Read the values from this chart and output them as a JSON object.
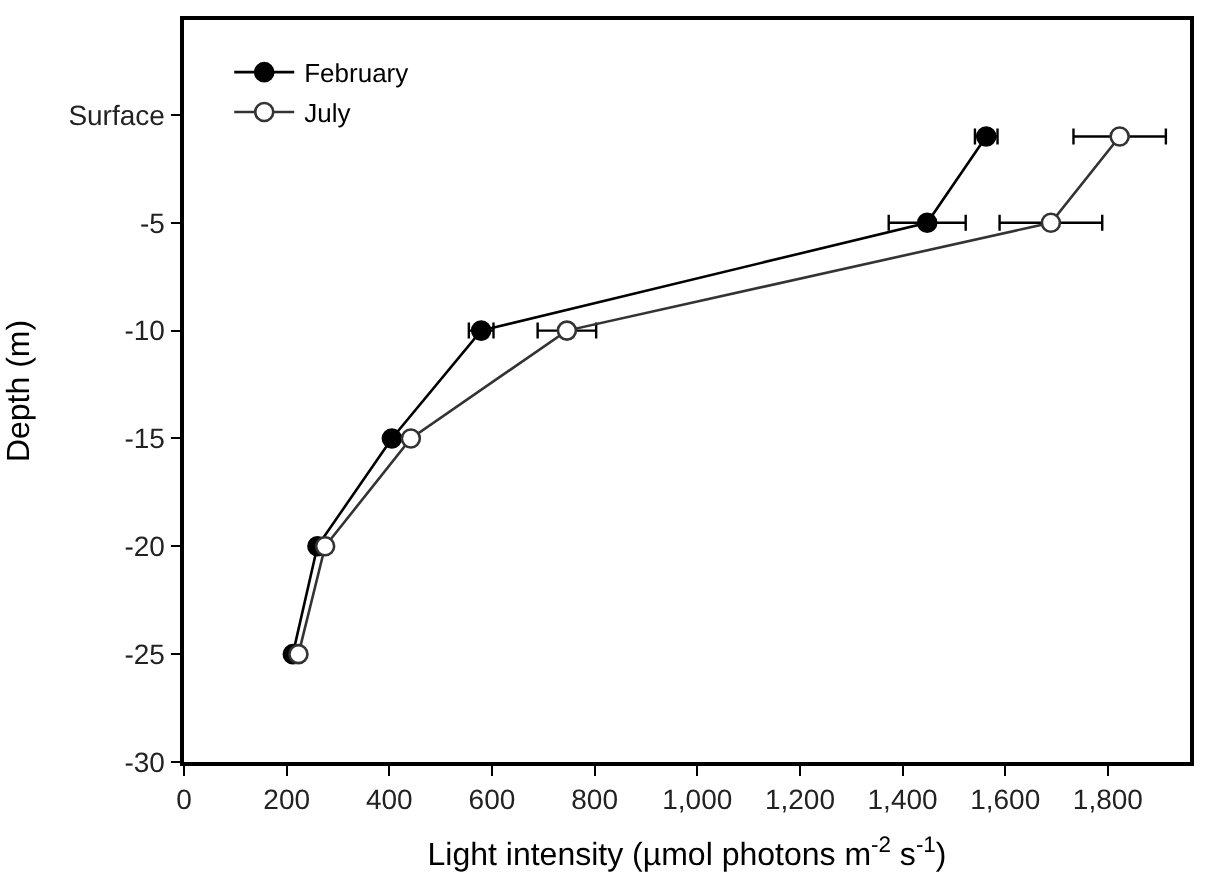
{
  "chart_data": {
    "type": "line",
    "xlabel": "Light intensity (µmol photons m$^{-2}$ s$^{-1}$)",
    "ylabel": "Depth (m)",
    "xlim": [
      0,
      1960
    ],
    "xticks": [
      0,
      {
        "value": 200,
        "label": "200"
      },
      {
        "value": 400,
        "label": "400"
      },
      {
        "value": 600,
        "label": "600"
      },
      {
        "value": 800,
        "label": "800"
      },
      {
        "value": 1000,
        "label": "1,000"
      },
      {
        "value": 1200,
        "label": "1,200"
      },
      {
        "value": 1400,
        "label": "1,400"
      },
      {
        "value": 1600,
        "label": "1,600"
      },
      {
        "value": 1800,
        "label": "1,800"
      }
    ],
    "ylim": [
      -30,
      4.4
    ],
    "yticks": [
      {
        "value": 0,
        "label": "Surface"
      },
      -5,
      -10,
      -15,
      -20,
      -25,
      -30
    ],
    "legend": "top left",
    "marker": "circle",
    "line_style": "solid",
    "series": [
      {
        "name": "February",
        "color": "#000000",
        "x": [
          1563,
          1448,
          579,
          405,
          260,
          212
        ],
        "values": [
          -1,
          -5,
          -10,
          -15,
          -20,
          -25
        ],
        "xerrors": [
          22,
          75,
          24,
          null,
          null,
          null
        ]
      },
      {
        "name": "July",
        "color": "#333333",
        "x": [
          1823,
          1689,
          746,
          442,
          275,
          223
        ],
        "values": [
          -1,
          -5,
          -10,
          -15,
          -20,
          -25
        ],
        "xerrors": [
          90,
          100,
          57,
          null,
          null,
          null
        ]
      }
    ]
  }
}
